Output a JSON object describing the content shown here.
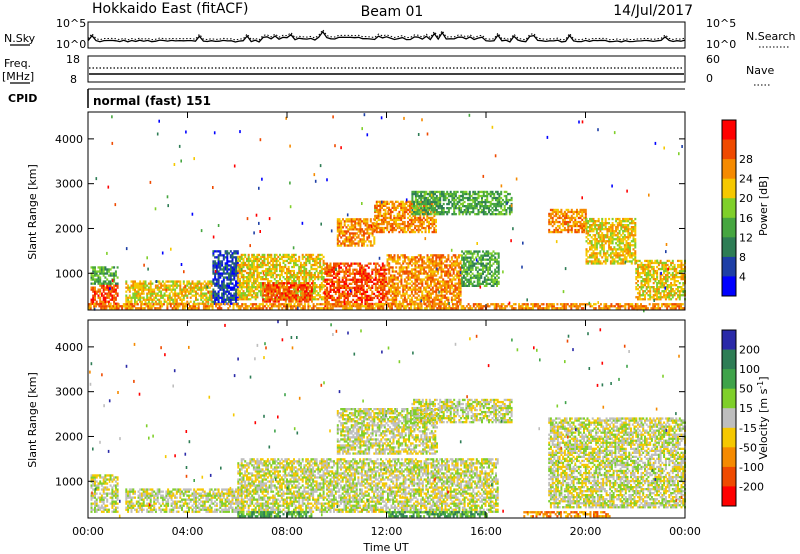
{
  "header": {
    "title": "Hokkaido East (fitACF)",
    "beam": "Beam 01",
    "date": "14/Jul/2017"
  },
  "top_panels": {
    "nsky_label": "N.Sky",
    "nsky_ticks": [
      "10^5",
      "10^0"
    ],
    "nsearch_label": "N.Search",
    "nsearch_ticks": [
      "10^5",
      "10^0"
    ],
    "freq_label": "Freq.",
    "freq_unit": "[MHz]",
    "freq_ticks": [
      "18",
      "8"
    ],
    "nave_label": "Nave",
    "nave_ticks": [
      "60",
      "0"
    ],
    "cpid_label": "CPID",
    "cpid_text": "normal (fast) 151"
  },
  "chart_data": [
    {
      "type": "heatmap",
      "name": "power",
      "ylabel": "Slant Range [km]",
      "ylim": [
        180,
        4600
      ],
      "yticks": [
        "1000",
        "2000",
        "3000",
        "4000"
      ],
      "ytick_values": [
        1000,
        2000,
        3000,
        4000
      ],
      "colorbar_label": "Power [dB]",
      "colorbar_ticks": [
        "4",
        "8",
        "12",
        "16",
        "20",
        "24",
        "28"
      ],
      "colors": [
        "#0000ff",
        "#1e3fa6",
        "#2e7d55",
        "#46a640",
        "#7fcf2a",
        "#f5c800",
        "#f58a00",
        "#ef4a00",
        "#ff0000"
      ],
      "regions": [
        {
          "t": [
            0.1,
            1.2
          ],
          "r": [
            300,
            750
          ],
          "level": 7
        },
        {
          "t": [
            0.1,
            1.2
          ],
          "r": [
            750,
            1150
          ],
          "level": 3
        },
        {
          "t": [
            1.5,
            5.0
          ],
          "r": [
            300,
            800
          ],
          "level": 5
        },
        {
          "t": [
            5.0,
            6.0
          ],
          "r": [
            300,
            1500
          ],
          "level": 1
        },
        {
          "t": [
            6.0,
            9.5
          ],
          "r": [
            400,
            1400
          ],
          "level": 5
        },
        {
          "t": [
            7.0,
            9.0
          ],
          "r": [
            350,
            800
          ],
          "level": 7
        },
        {
          "t": [
            9.5,
            12.0
          ],
          "r": [
            250,
            1200
          ],
          "level": 7
        },
        {
          "t": [
            12.0,
            15.0
          ],
          "r": [
            300,
            1400
          ],
          "level": 6
        },
        {
          "t": [
            15.0,
            16.5
          ],
          "r": [
            700,
            1500
          ],
          "level": 3
        },
        {
          "t": [
            10.0,
            11.5
          ],
          "r": [
            1600,
            2200
          ],
          "level": 6
        },
        {
          "t": [
            11.5,
            14.0
          ],
          "r": [
            1900,
            2600
          ],
          "level": 6
        },
        {
          "t": [
            13.0,
            17.0
          ],
          "r": [
            2300,
            2800
          ],
          "level": 3
        },
        {
          "t": [
            18.5,
            20.0
          ],
          "r": [
            1900,
            2400
          ],
          "level": 6
        },
        {
          "t": [
            20.0,
            22.0
          ],
          "r": [
            1200,
            2200
          ],
          "level": 5
        },
        {
          "t": [
            22.0,
            24.0
          ],
          "r": [
            400,
            1300
          ],
          "level": 5
        },
        {
          "t": [
            0.0,
            24.0
          ],
          "r": [
            200,
            300
          ],
          "level": 6
        }
      ]
    },
    {
      "type": "heatmap",
      "name": "velocity",
      "ylabel": "Slant Range [km]",
      "ylim": [
        180,
        4600
      ],
      "yticks": [
        "1000",
        "2000",
        "3000",
        "4000"
      ],
      "ytick_values": [
        1000,
        2000,
        3000,
        4000
      ],
      "xticks": [
        "00:00",
        "04:00",
        "08:00",
        "12:00",
        "16:00",
        "20:00",
        "00:00"
      ],
      "xtick_values": [
        0,
        4,
        8,
        12,
        16,
        20,
        24
      ],
      "xlabel": "Time UT",
      "colorbar_label": "Velocity [m s-1]",
      "colorbar_label_main": "Velocity [m s",
      "colorbar_label_sup": "-1",
      "colorbar_label_end": "]",
      "colorbar_ticks": [
        "200",
        "100",
        "50",
        "15",
        "-15",
        "-50",
        "-100",
        "-200"
      ],
      "colors": [
        "#2a2aa8",
        "#2e7d55",
        "#3fa34a",
        "#7fcf2a",
        "#bebebe",
        "#f5c800",
        "#f58a00",
        "#ef4a00",
        "#ff0000"
      ],
      "regions": [
        {
          "t": [
            0.1,
            1.2
          ],
          "r": [
            300,
            1150
          ],
          "level": 4
        },
        {
          "t": [
            1.5,
            6.0
          ],
          "r": [
            300,
            800
          ],
          "level": 4
        },
        {
          "t": [
            6.0,
            16.5
          ],
          "r": [
            300,
            1500
          ],
          "level": 4
        },
        {
          "t": [
            10.0,
            14.0
          ],
          "r": [
            1600,
            2600
          ],
          "level": 4
        },
        {
          "t": [
            13.0,
            17.0
          ],
          "r": [
            2300,
            2800
          ],
          "level": 4
        },
        {
          "t": [
            18.5,
            24.0
          ],
          "r": [
            400,
            2400
          ],
          "level": 4
        },
        {
          "t": [
            6.0,
            9.0
          ],
          "r": [
            200,
            300
          ],
          "level": 2
        },
        {
          "t": [
            12.0,
            16.0
          ],
          "r": [
            200,
            300
          ],
          "level": 2
        },
        {
          "t": [
            17.5,
            21.0
          ],
          "r": [
            200,
            300
          ],
          "level": 6
        }
      ]
    }
  ]
}
